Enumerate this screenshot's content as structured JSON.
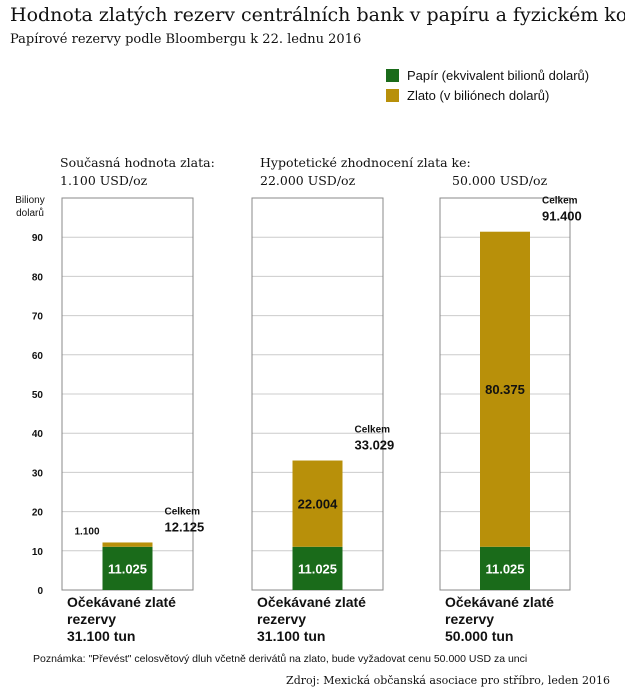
{
  "title": "Hodnota zlatých rezerv centrálních bank v papíru a fyzickém kovu",
  "subtitle": "Papírové rezervy podle Bloombergu k 22. lednu 2016",
  "colors": {
    "paper": "#1a6b1a",
    "gold": "#b8900a",
    "grid": "#cccccc",
    "axis": "#888888"
  },
  "legend": [
    {
      "label": "Papír (ekvivalent bilionů dolarů)",
      "color": "#1a6b1a"
    },
    {
      "label": "Zlato (v biliónech dolarů)",
      "color": "#b8900a"
    }
  ],
  "chart_data": {
    "type": "bar",
    "stacked": true,
    "ylabel_line1": "Biliony",
    "ylabel_line2": "dolarů",
    "ylim": [
      0,
      100
    ],
    "yticks": [
      0,
      10,
      20,
      30,
      40,
      50,
      60,
      70,
      80,
      90
    ],
    "grid": true,
    "legend_position": "top-right",
    "headers": {
      "current_line1": "Současná hodnota zlata:",
      "current_line2": "1.100 USD/oz",
      "hypo": "Hypotetické zhodnocení zlata ke:",
      "p22": "22.000 USD/oz",
      "p50": "50.000 USD/oz"
    },
    "panels": [
      {
        "paper": 11.025,
        "paper_label": "11.025",
        "gold": 1.1,
        "gold_label": "1.100",
        "total_caption": "Celkem",
        "total_label": "12.125",
        "footer_line1": "Očekávané zlaté",
        "footer_line2": "rezervy",
        "footer_line3": "31.100 tun"
      },
      {
        "paper": 11.025,
        "paper_label": "11.025",
        "gold": 22.004,
        "gold_label": "22.004",
        "total_caption": "Celkem",
        "total_label": "33.029",
        "footer_line1": "Očekávané zlaté",
        "footer_line2": "rezervy",
        "footer_line3": "31.100 tun"
      },
      {
        "paper": 11.025,
        "paper_label": "11.025",
        "gold": 80.375,
        "gold_label": "80.375",
        "total_caption": "Celkem",
        "total_label": "91.400",
        "footer_line1": "Očekávané zlaté",
        "footer_line2": "rezervy",
        "footer_line3": "50.000 tun"
      }
    ]
  },
  "note": "Poznámka: \"Převést\" celosvětový dluh včetně derivátů na zlato, bude vyžadovat cenu 50.000 USD za unci",
  "source": "Zdroj: Mexická občanská asociace pro stříbro, leden 2016"
}
